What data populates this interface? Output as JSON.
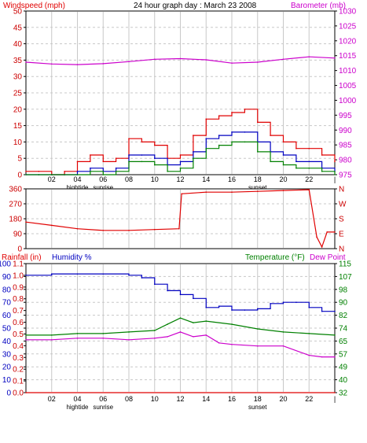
{
  "header": {
    "title": "24 hour graph day : March 23 2008",
    "left_label": "Windspeed (mph)",
    "right_label": "Barometer (mb)"
  },
  "colors": {
    "wind_speed": "#e00000",
    "wind_avg": "#0000c0",
    "wind_gust_green": "#008000",
    "barometer": "#cc00cc",
    "humidity": "#0000c0",
    "temperature": "#008000",
    "dewpoint": "#cc00cc",
    "rain": "#e00000",
    "grid": "#c8c8c8"
  },
  "x_axis": {
    "ticks": [
      "02",
      "04",
      "06",
      "08",
      "10",
      "12",
      "14",
      "16",
      "18",
      "20",
      "22",
      "|"
    ],
    "annotations": [
      {
        "label": "hightide",
        "hour": 4
      },
      {
        "label": "sunrise",
        "hour": 6
      },
      {
        "label": "sunset",
        "hour": 18
      }
    ]
  },
  "wind_panel": {
    "left_ticks": [
      "50",
      "45",
      "40",
      "35",
      "30",
      "25",
      "20",
      "15",
      "10",
      "5",
      "0"
    ],
    "right_ticks": [
      "1030",
      "1025",
      "1020",
      "1015",
      "1010",
      "1005",
      "1000",
      "995",
      "990",
      "985",
      "980",
      "975"
    ]
  },
  "direction_panel": {
    "ticks": [
      "360",
      "270",
      "180",
      "90",
      "0"
    ],
    "compass": [
      "N",
      "W",
      "S",
      "E",
      "N"
    ]
  },
  "bottom_panel": {
    "rain_label": "Rainfall (in)",
    "humidity_label": "Humidity %",
    "temp_label": "Temperature (°F)",
    "dew_label": "Dew Point",
    "humidity_ticks": [
      "100",
      "90",
      "80",
      "70",
      "60",
      "50",
      "40",
      "30",
      "20",
      "10",
      "0"
    ],
    "rain_ticks": [
      "1.1",
      "1.0",
      "0.9",
      "0.8",
      "0.7",
      "0.6",
      "0.5",
      "0.4",
      "0.3",
      "0.2",
      "0.1",
      "0.0"
    ],
    "temp_ticks": [
      "115",
      "107",
      "98",
      "90",
      "82",
      "74",
      "65",
      "57",
      "49",
      "40",
      "32"
    ]
  },
  "chart_data": [
    {
      "type": "line",
      "title": "24 hour graph day : March 23 2008",
      "x_unit": "hour",
      "xlim": [
        0,
        24
      ],
      "grid": true,
      "axes": {
        "left": {
          "label": "Windspeed (mph)",
          "ylim": [
            0,
            50
          ]
        },
        "right": {
          "label": "Barometer (mb)",
          "ylim": [
            975,
            1030
          ]
        }
      },
      "series": [
        {
          "name": "Windspeed (mph)",
          "axis": "left",
          "color": "#e00000",
          "x": [
            0,
            1,
            2,
            3,
            4,
            5,
            6,
            7,
            8,
            9,
            10,
            11,
            12,
            13,
            14,
            15,
            16,
            17,
            18,
            19,
            20,
            21,
            22,
            23,
            24
          ],
          "y": [
            1,
            1,
            0,
            1,
            4,
            6,
            4,
            5,
            11,
            10,
            9,
            5,
            6,
            12,
            17,
            18,
            19,
            20,
            16,
            12,
            10,
            8,
            8,
            6,
            4
          ]
        },
        {
          "name": "",
          "axis": "left",
          "color": "#0000c0",
          "x": [
            0,
            1,
            2,
            3,
            4,
            5,
            6,
            7,
            8,
            9,
            10,
            11,
            12,
            13,
            14,
            15,
            16,
            17,
            18,
            19,
            20,
            21,
            22,
            23,
            24
          ],
          "y": [
            0,
            0,
            0,
            0,
            1,
            2,
            1,
            2,
            6,
            6,
            5,
            3,
            4,
            7,
            11,
            12,
            13,
            13,
            10,
            7,
            6,
            4,
            4,
            2,
            1
          ]
        },
        {
          "name": "",
          "axis": "left",
          "color": "#008000",
          "x": [
            0,
            1,
            2,
            3,
            4,
            5,
            6,
            7,
            8,
            9,
            10,
            11,
            12,
            13,
            14,
            15,
            16,
            17,
            18,
            19,
            20,
            21,
            22,
            23,
            24
          ],
          "y": [
            0,
            0,
            0,
            0,
            0,
            1,
            0,
            1,
            4,
            4,
            3,
            1,
            2,
            5,
            8,
            9,
            10,
            10,
            7,
            4,
            3,
            2,
            2,
            1,
            0
          ]
        },
        {
          "name": "Barometer (mb)",
          "axis": "right",
          "color": "#cc00cc",
          "x": [
            0,
            2,
            4,
            6,
            8,
            10,
            12,
            14,
            16,
            18,
            20,
            22,
            24
          ],
          "y": [
            1012.8,
            1012.2,
            1012.0,
            1012.3,
            1013.0,
            1013.8,
            1014.0,
            1013.6,
            1012.5,
            1012.8,
            1013.8,
            1014.6,
            1014.2
          ]
        }
      ]
    },
    {
      "type": "line",
      "x_unit": "hour",
      "xlim": [
        0,
        24
      ],
      "axes": {
        "left": {
          "ylim": [
            0,
            360
          ]
        }
      },
      "series": [
        {
          "name": "",
          "color": "#e00000",
          "x": [
            0,
            2,
            4,
            6,
            8,
            10,
            11.9,
            12.1,
            14,
            16,
            18,
            20,
            22,
            22.6,
            23,
            23.4,
            24
          ],
          "y": [
            160,
            140,
            120,
            110,
            110,
            115,
            120,
            330,
            340,
            340,
            345,
            350,
            355,
            70,
            10,
            100,
            100
          ]
        }
      ]
    },
    {
      "type": "line",
      "x_unit": "hour",
      "xlim": [
        0,
        24
      ],
      "axes": {
        "left_humidity": {
          "label": "Humidity %",
          "ylim": [
            0,
            100
          ]
        },
        "left_rain": {
          "label": "Rainfall (in)",
          "ylim": [
            0,
            1.1
          ]
        },
        "right": {
          "label": "Temperature (°F)",
          "ylim": [
            32,
            115
          ]
        }
      },
      "series": [
        {
          "name": "Humidity %",
          "axis": "left_humidity",
          "color": "#0000c0",
          "x": [
            0,
            2,
            4,
            6,
            8,
            9,
            10,
            11,
            12,
            13,
            14,
            15,
            16,
            17,
            18,
            19,
            20,
            21,
            22,
            23,
            24
          ],
          "y": [
            91,
            92,
            92,
            92,
            91,
            89,
            84,
            79,
            76,
            73,
            66,
            67,
            64,
            64,
            65,
            69,
            70,
            70,
            66,
            63,
            63
          ]
        },
        {
          "name": "Rainfall (in)",
          "axis": "left_rain",
          "color": "#e00000",
          "x": [
            0,
            24
          ],
          "y": [
            0,
            0
          ]
        },
        {
          "name": "Temperature (°F)",
          "axis": "right",
          "color": "#008000",
          "x": [
            0,
            2,
            4,
            6,
            8,
            10,
            11,
            12,
            13,
            14,
            16,
            18,
            20,
            22,
            24
          ],
          "y": [
            69,
            69,
            70,
            70,
            71,
            72,
            76,
            80,
            77,
            78,
            76,
            73,
            71,
            70,
            69
          ]
        },
        {
          "name": "Dew Point",
          "axis": "right",
          "color": "#cc00cc",
          "x": [
            0,
            2,
            4,
            6,
            8,
            10,
            11,
            12,
            13,
            14,
            15,
            16,
            18,
            20,
            22,
            23,
            24
          ],
          "y": [
            66,
            66,
            67,
            67,
            66,
            67,
            68,
            71,
            68,
            69,
            64,
            63,
            62,
            62,
            56,
            55,
            55
          ]
        }
      ]
    }
  ]
}
